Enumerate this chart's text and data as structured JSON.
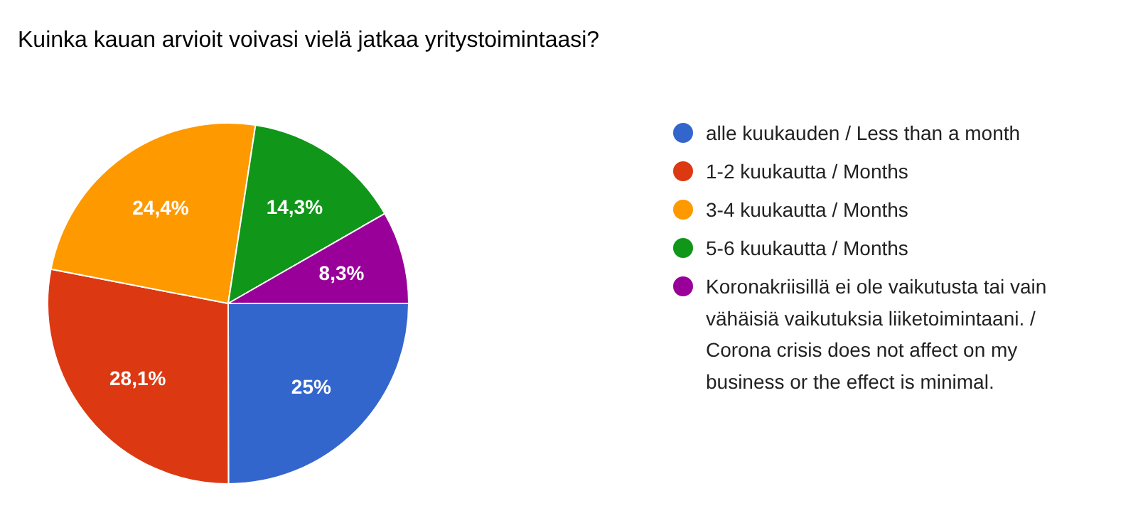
{
  "chart_data": {
    "type": "pie",
    "title": "Kuinka kauan arvioit voivasi vielä jatkaa yritystoimintaasi?",
    "categories": [
      "alle kuukauden / Less than a month",
      "1-2 kuukautta / Months",
      "3-4 kuukautta / Months",
      "5-6 kuukautta / Months",
      "Koronakriisillä ei ole vaikutusta tai vain vähäisiä vaikutuksia liiketoimintaani. / Corona crisis does not affect on my business or the effect is minimal."
    ],
    "values": [
      25,
      28.1,
      24.4,
      14.3,
      8.3
    ],
    "colors": [
      "#3366cc",
      "#dc3912",
      "#ff9900",
      "#109618",
      "#990099"
    ],
    "value_labels": [
      "25%",
      "28,1%",
      "24,4%",
      "14,3%",
      "8,3%"
    ],
    "legend": "right"
  }
}
